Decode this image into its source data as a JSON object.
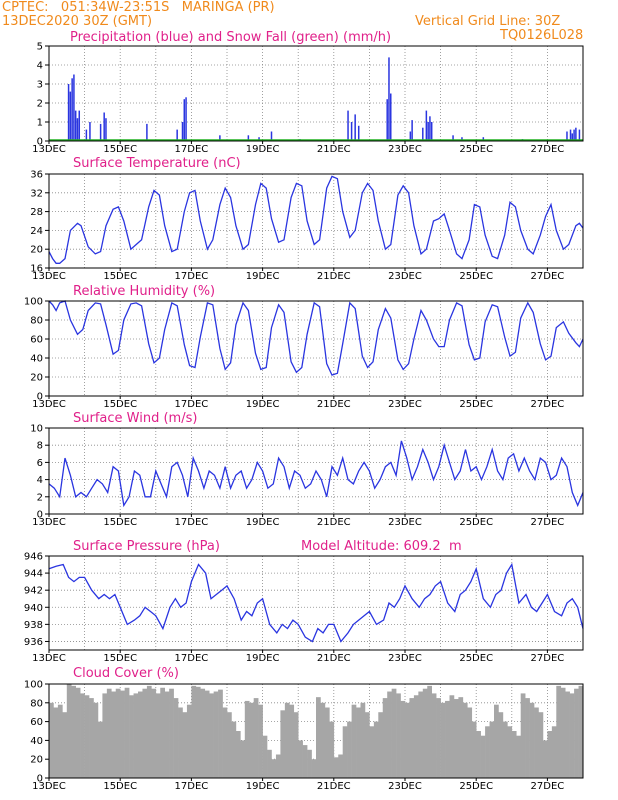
{
  "header": {
    "line1": "CPTEC:   051:34W-23:51S   MARINGA (PR)",
    "line2": "13DEC2020 30Z (GMT)",
    "grid_note": "Vertical Grid Line: 30Z",
    "code": "TQ0126L028"
  },
  "colors": {
    "header": "#f08a1c",
    "title": "#e0208a",
    "line": "#2a35e0",
    "bar": "#2a35e0",
    "snow": "#20b020",
    "cloud": "#a6a6a6"
  },
  "x_axis": {
    "day_range": [
      13,
      28
    ],
    "labels": [
      "13DEC",
      "15DEC",
      "17DEC",
      "19DEC",
      "21DEC",
      "23DEC",
      "25DEC",
      "27DEC"
    ],
    "label_days": [
      13,
      15,
      17,
      19,
      21,
      23,
      25,
      27
    ]
  },
  "chart_data": [
    {
      "type": "bar",
      "title": "Precipitation (blue) and Snow Fall (green) (mm/h)",
      "ylim": [
        0,
        5
      ],
      "yticks": [
        0,
        1,
        2,
        3,
        4,
        5
      ],
      "series": [
        {
          "name": "Precipitation",
          "x": [
            13.55,
            13.6,
            13.65,
            13.7,
            13.75,
            13.8,
            13.85,
            14.05,
            14.15,
            14.45,
            14.55,
            14.6,
            15.75,
            16.6,
            16.75,
            16.8,
            16.85,
            17.8,
            18.6,
            18.9,
            19.25,
            20.05,
            21.4,
            21.5,
            21.6,
            21.7,
            22.5,
            22.55,
            22.6,
            23.15,
            23.2,
            23.5,
            23.6,
            23.65,
            23.7,
            23.75,
            24.35,
            24.6,
            25.2,
            26.3,
            27.55,
            27.65,
            27.7,
            27.75,
            27.8,
            27.9
          ],
          "values": [
            3.0,
            2.6,
            3.3,
            3.5,
            1.6,
            1.2,
            1.6,
            0.6,
            1.0,
            0.9,
            1.5,
            1.2,
            0.9,
            0.6,
            1.0,
            2.2,
            2.3,
            0.3,
            0.3,
            0.2,
            0.5,
            0.1,
            1.6,
            1.0,
            1.4,
            0.8,
            2.2,
            4.4,
            2.5,
            0.5,
            1.1,
            0.7,
            1.6,
            1.0,
            1.3,
            1.0,
            0.3,
            0.2,
            0.2,
            0.1,
            0.5,
            0.6,
            0.4,
            0.6,
            0.7,
            0.6
          ]
        },
        {
          "name": "Snow Fall",
          "x": [],
          "values": []
        }
      ]
    },
    {
      "type": "line",
      "title": "Surface Temperature (nC)",
      "ylim": [
        16,
        36
      ],
      "yticks": [
        16,
        20,
        24,
        28,
        32,
        36
      ],
      "x": [
        13,
        13.1,
        13.2,
        13.3,
        13.45,
        13.6,
        13.8,
        13.9,
        14.1,
        14.3,
        14.45,
        14.6,
        14.8,
        14.95,
        15.1,
        15.3,
        15.45,
        15.6,
        15.8,
        15.95,
        16.1,
        16.25,
        16.45,
        16.6,
        16.8,
        16.95,
        17.1,
        17.25,
        17.45,
        17.6,
        17.8,
        17.95,
        18.1,
        18.25,
        18.45,
        18.6,
        18.8,
        18.95,
        19.1,
        19.25,
        19.45,
        19.6,
        19.8,
        19.95,
        20.1,
        20.25,
        20.45,
        20.6,
        20.8,
        20.95,
        21.1,
        21.25,
        21.45,
        21.6,
        21.8,
        21.95,
        22.1,
        22.25,
        22.45,
        22.6,
        22.8,
        22.95,
        23.1,
        23.25,
        23.45,
        23.6,
        23.8,
        23.95,
        24.1,
        24.25,
        24.45,
        24.6,
        24.8,
        24.95,
        25.1,
        25.25,
        25.45,
        25.6,
        25.8,
        25.95,
        26.1,
        26.25,
        26.45,
        26.6,
        26.8,
        26.95,
        27.1,
        27.25,
        27.45,
        27.6,
        27.8,
        27.9,
        28
      ],
      "values": [
        19.5,
        18,
        17,
        17,
        18,
        24,
        25.5,
        25,
        20.5,
        19,
        19.5,
        25,
        28.5,
        29,
        26,
        20,
        21,
        22,
        29,
        32.5,
        31.5,
        25,
        19.5,
        20,
        28,
        32,
        32.5,
        26,
        20,
        22,
        29.5,
        33,
        31,
        25,
        20,
        21,
        29.5,
        34,
        33,
        26.5,
        21.5,
        22,
        31,
        34,
        33.5,
        26,
        21,
        22,
        33,
        35.5,
        35,
        28,
        22.5,
        24,
        32,
        34,
        32.5,
        26,
        20,
        21,
        31.5,
        33.5,
        32,
        25,
        19,
        20,
        26,
        26.5,
        27.5,
        24,
        19,
        18,
        22,
        29.5,
        29,
        23,
        18.5,
        18,
        23,
        30,
        29,
        24,
        20,
        19,
        23,
        27,
        29.5,
        24,
        20,
        21,
        25,
        25.5,
        24.5
      ]
    },
    {
      "type": "line",
      "title": "Relative Humidity (%)",
      "ylim": [
        0,
        100
      ],
      "yticks": [
        0,
        20,
        40,
        60,
        80,
        100
      ],
      "x": [
        13,
        13.1,
        13.2,
        13.3,
        13.45,
        13.6,
        13.8,
        13.95,
        14.1,
        14.3,
        14.45,
        14.6,
        14.8,
        14.95,
        15.1,
        15.3,
        15.45,
        15.6,
        15.8,
        15.95,
        16.1,
        16.25,
        16.45,
        16.6,
        16.8,
        16.95,
        17.1,
        17.25,
        17.45,
        17.6,
        17.8,
        17.95,
        18.1,
        18.25,
        18.45,
        18.6,
        18.8,
        18.95,
        19.1,
        19.25,
        19.45,
        19.6,
        19.8,
        19.95,
        20.1,
        20.25,
        20.45,
        20.6,
        20.8,
        20.95,
        21.1,
        21.25,
        21.45,
        21.6,
        21.8,
        21.95,
        22.1,
        22.25,
        22.45,
        22.6,
        22.8,
        22.95,
        23.1,
        23.25,
        23.45,
        23.6,
        23.8,
        23.95,
        24.1,
        24.25,
        24.45,
        24.6,
        24.8,
        24.95,
        25.1,
        25.25,
        25.45,
        25.6,
        25.8,
        25.95,
        26.1,
        26.25,
        26.45,
        26.6,
        26.8,
        26.95,
        27.1,
        27.25,
        27.45,
        27.6,
        27.8,
        27.9,
        28
      ],
      "values": [
        100,
        96,
        90,
        98,
        100,
        80,
        65,
        70,
        90,
        98,
        97,
        75,
        44,
        48,
        80,
        97,
        98,
        95,
        55,
        35,
        40,
        70,
        98,
        95,
        54,
        32,
        30,
        62,
        98,
        96,
        50,
        28,
        35,
        75,
        98,
        90,
        45,
        28,
        30,
        72,
        96,
        88,
        36,
        25,
        30,
        65,
        98,
        94,
        34,
        22,
        24,
        55,
        98,
        92,
        42,
        30,
        36,
        70,
        92,
        82,
        38,
        28,
        34,
        60,
        90,
        80,
        60,
        52,
        52,
        80,
        98,
        95,
        54,
        38,
        40,
        78,
        96,
        94,
        62,
        42,
        46,
        82,
        98,
        88,
        55,
        38,
        42,
        72,
        78,
        66,
        56,
        52,
        60
      ]
    },
    {
      "type": "line",
      "title": "Surface Wind (m/s)",
      "ylim": [
        0,
        10
      ],
      "yticks": [
        0,
        2,
        4,
        6,
        8,
        10
      ],
      "x": [
        13,
        13.15,
        13.3,
        13.45,
        13.6,
        13.75,
        13.9,
        14.05,
        14.2,
        14.35,
        14.5,
        14.65,
        14.8,
        14.95,
        15.1,
        15.25,
        15.4,
        15.55,
        15.7,
        15.85,
        16,
        16.15,
        16.3,
        16.45,
        16.6,
        16.75,
        16.9,
        17.05,
        17.2,
        17.35,
        17.5,
        17.65,
        17.8,
        17.95,
        18.1,
        18.25,
        18.4,
        18.55,
        18.7,
        18.85,
        19,
        19.15,
        19.3,
        19.45,
        19.6,
        19.75,
        19.9,
        20.05,
        20.2,
        20.35,
        20.5,
        20.65,
        20.8,
        20.95,
        21.1,
        21.25,
        21.4,
        21.55,
        21.7,
        21.85,
        22,
        22.15,
        22.3,
        22.45,
        22.6,
        22.75,
        22.9,
        23.05,
        23.2,
        23.35,
        23.5,
        23.65,
        23.8,
        23.95,
        24.1,
        24.25,
        24.4,
        24.55,
        24.7,
        24.85,
        25,
        25.15,
        25.3,
        25.45,
        25.6,
        25.75,
        25.9,
        26.05,
        26.2,
        26.35,
        26.5,
        26.65,
        26.8,
        26.95,
        27.1,
        27.25,
        27.4,
        27.55,
        27.7,
        27.85,
        28
      ],
      "values": [
        3.5,
        3,
        2,
        6.5,
        4.5,
        2,
        2.5,
        2,
        3,
        4,
        3.5,
        2.5,
        5.5,
        5,
        1,
        2,
        5,
        4.5,
        2,
        2,
        5,
        3.5,
        2,
        5.5,
        6,
        4.5,
        2,
        6.5,
        5,
        3,
        5,
        4.5,
        3,
        5.5,
        3,
        4.5,
        5,
        3,
        4,
        6,
        5,
        3,
        3.5,
        6.5,
        5.5,
        3,
        5,
        4.5,
        3,
        3.5,
        5,
        4,
        2,
        5.5,
        4.5,
        6.5,
        4,
        3.5,
        5,
        6,
        5,
        3,
        4,
        5.5,
        6,
        4.5,
        8.5,
        6.5,
        4,
        5.5,
        7.5,
        6,
        4,
        5.5,
        8,
        6,
        4,
        5,
        7.5,
        5,
        5.5,
        4,
        5.5,
        7.5,
        5,
        4,
        6.5,
        7,
        5,
        6.5,
        5,
        4,
        6.5,
        6,
        4,
        4.5,
        6.5,
        5.5,
        2.5,
        1,
        2.5
      ]
    },
    {
      "type": "line",
      "title": "Surface Pressure (hPa)",
      "annotation": "Model Altitude: 609.2  m",
      "ylim": [
        935,
        946
      ],
      "yticks": [
        936,
        938,
        940,
        942,
        944,
        946
      ],
      "x": [
        13,
        13.2,
        13.4,
        13.55,
        13.7,
        13.85,
        14,
        14.2,
        14.4,
        14.55,
        14.7,
        14.85,
        15,
        15.2,
        15.4,
        15.55,
        15.7,
        15.85,
        16,
        16.2,
        16.4,
        16.55,
        16.7,
        16.85,
        17,
        17.2,
        17.4,
        17.55,
        17.7,
        17.85,
        18,
        18.2,
        18.4,
        18.55,
        18.7,
        18.85,
        19,
        19.2,
        19.4,
        19.55,
        19.7,
        19.85,
        20,
        20.2,
        20.4,
        20.55,
        20.7,
        20.85,
        21,
        21.2,
        21.4,
        21.55,
        21.7,
        21.85,
        22,
        22.2,
        22.4,
        22.55,
        22.7,
        22.85,
        23,
        23.2,
        23.4,
        23.55,
        23.7,
        23.85,
        24,
        24.2,
        24.4,
        24.55,
        24.7,
        24.85,
        25,
        25.2,
        25.4,
        25.55,
        25.7,
        25.85,
        26,
        26.2,
        26.4,
        26.55,
        26.7,
        26.85,
        27,
        27.2,
        27.4,
        27.55,
        27.7,
        27.85,
        28
      ],
      "values": [
        944.5,
        944.8,
        945,
        943.5,
        943,
        943.5,
        943.5,
        942,
        941,
        941.5,
        941,
        941.5,
        940,
        938,
        938.5,
        939,
        940,
        939.5,
        939,
        937.5,
        940,
        941,
        940,
        940.5,
        943,
        945,
        944,
        941,
        941.5,
        942,
        942.5,
        941,
        938.5,
        939.5,
        939,
        940.5,
        941,
        938,
        937,
        938,
        937.5,
        938.5,
        938,
        936.5,
        936,
        937.5,
        937,
        938,
        938,
        936,
        937,
        938,
        938.5,
        939,
        939.5,
        938,
        938.5,
        940.5,
        940,
        941,
        942.5,
        941,
        940,
        941,
        941.5,
        942.5,
        943,
        940.5,
        939.5,
        941.5,
        942,
        943,
        944.5,
        941,
        940,
        941.5,
        942,
        944,
        945,
        940.5,
        941.5,
        940,
        939.5,
        940.5,
        941.5,
        939.5,
        939,
        940.5,
        941,
        940,
        937.5
      ]
    },
    {
      "type": "bar",
      "title": "Cloud Cover (%)",
      "ylim": [
        0,
        100
      ],
      "yticks": [
        0,
        20,
        40,
        60,
        80,
        100
      ],
      "x": [
        13,
        13.125,
        13.25,
        13.375,
        13.5,
        13.625,
        13.75,
        13.875,
        14,
        14.125,
        14.25,
        14.375,
        14.5,
        14.625,
        14.75,
        14.875,
        15,
        15.125,
        15.25,
        15.375,
        15.5,
        15.625,
        15.75,
        15.875,
        16,
        16.125,
        16.25,
        16.375,
        16.5,
        16.625,
        16.75,
        16.875,
        17,
        17.125,
        17.25,
        17.375,
        17.5,
        17.625,
        17.75,
        17.875,
        18,
        18.125,
        18.25,
        18.375,
        18.5,
        18.625,
        18.75,
        18.875,
        19,
        19.125,
        19.25,
        19.375,
        19.5,
        19.625,
        19.75,
        19.875,
        20,
        20.125,
        20.25,
        20.375,
        20.5,
        20.625,
        20.75,
        20.875,
        21,
        21.125,
        21.25,
        21.375,
        21.5,
        21.625,
        21.75,
        21.875,
        22,
        22.125,
        22.25,
        22.375,
        22.5,
        22.625,
        22.75,
        22.875,
        23,
        23.125,
        23.25,
        23.375,
        23.5,
        23.625,
        23.75,
        23.875,
        24,
        24.125,
        24.25,
        24.375,
        24.5,
        24.625,
        24.75,
        24.875,
        25,
        25.125,
        25.25,
        25.375,
        25.5,
        25.625,
        25.75,
        25.875,
        26,
        26.125,
        26.25,
        26.375,
        26.5,
        26.625,
        26.75,
        26.875,
        27,
        27.125,
        27.25,
        27.375,
        27.5,
        27.625,
        27.75,
        27.875
      ],
      "values": [
        80,
        75,
        78,
        70,
        100,
        98,
        96,
        90,
        88,
        85,
        80,
        60,
        90,
        95,
        92,
        95,
        93,
        96,
        88,
        90,
        92,
        95,
        98,
        95,
        90,
        96,
        92,
        95,
        85,
        75,
        70,
        78,
        98,
        97,
        95,
        93,
        90,
        92,
        94,
        75,
        70,
        60,
        50,
        40,
        82,
        80,
        85,
        78,
        45,
        30,
        20,
        25,
        72,
        80,
        78,
        70,
        40,
        35,
        30,
        20,
        86,
        80,
        75,
        60,
        22,
        25,
        55,
        60,
        78,
        75,
        80,
        70,
        55,
        60,
        70,
        85,
        92,
        95,
        90,
        82,
        80,
        85,
        88,
        92,
        95,
        98,
        90,
        85,
        80,
        82,
        88,
        84,
        86,
        80,
        75,
        60,
        50,
        45,
        55,
        60,
        78,
        70,
        60,
        55,
        50,
        45,
        90,
        85,
        80,
        75,
        70,
        40,
        50,
        55,
        98,
        96,
        92,
        90,
        95,
        98
      ]
    }
  ]
}
